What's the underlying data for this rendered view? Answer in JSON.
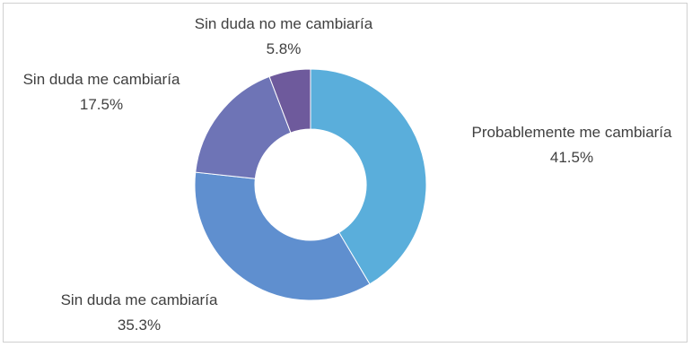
{
  "chart_data": {
    "type": "pie",
    "donut": true,
    "title": "",
    "slices": [
      {
        "label": "Probablemente me cambiaría",
        "value": 41.5,
        "value_label": "41.5%",
        "color": "#5aaedb"
      },
      {
        "label": "Sin duda me cambiaría",
        "value": 35.3,
        "value_label": "35.3%",
        "color": "#5f8fcf"
      },
      {
        "label": "Sin duda me cambiaría",
        "value": 17.5,
        "value_label": "17.5%",
        "color": "#6e74b6"
      },
      {
        "label": "Sin duda no me cambiaría",
        "value": 5.8,
        "value_label": "5.8%",
        "color": "#6e5a9c"
      }
    ]
  }
}
